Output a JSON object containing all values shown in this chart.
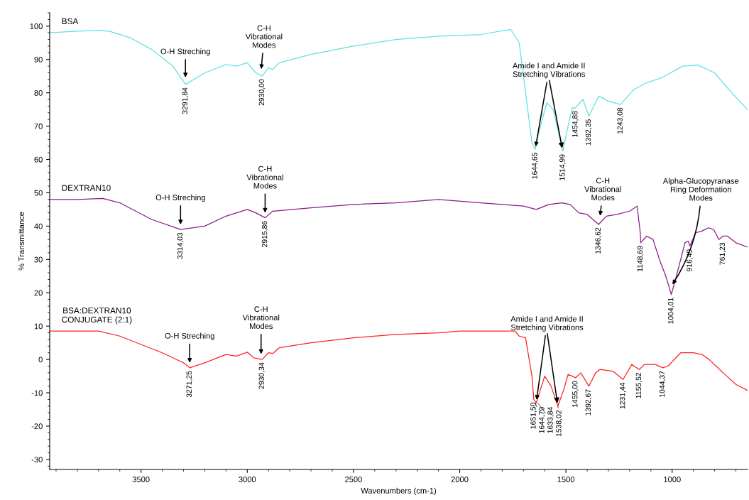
{
  "chart_data": {
    "type": "line",
    "xlabel": "Wavenumbers (cm-1)",
    "ylabel": "% Transmittance",
    "xlim": [
      3930,
      645
    ],
    "ylim": [
      -33,
      104
    ],
    "xticks": [
      3500,
      3000,
      2500,
      2000,
      1500,
      1000
    ],
    "yticks": [
      -30,
      -20,
      -10,
      0,
      10,
      20,
      30,
      40,
      50,
      60,
      70,
      80,
      90,
      100
    ],
    "grid": false,
    "legend": false,
    "marker": "none",
    "line_style": "solid",
    "series": [
      {
        "name": "BSA",
        "color": "#5fe0e0",
        "x": [
          3930,
          3800,
          3700,
          3650,
          3550,
          3450,
          3350,
          3291,
          3200,
          3100,
          3050,
          3000,
          2960,
          2930,
          2900,
          2880,
          2850,
          2700,
          2500,
          2300,
          2100,
          1900,
          1760,
          1720,
          1690,
          1660,
          1645,
          1620,
          1590,
          1560,
          1515,
          1490,
          1470,
          1455,
          1420,
          1392,
          1345,
          1300,
          1243,
          1180,
          1120,
          1050,
          950,
          880,
          800,
          720,
          645
        ],
        "values": [
          98,
          98.5,
          98.7,
          98.5,
          96.5,
          93,
          88,
          82.5,
          86,
          88.5,
          88,
          89,
          86,
          85,
          87.5,
          87,
          89,
          91.5,
          94,
          96,
          97,
          97.5,
          99,
          95,
          80,
          65,
          63,
          70,
          77,
          75,
          62.5,
          70,
          75.5,
          75.5,
          78,
          73,
          79,
          77.5,
          76.5,
          81,
          83,
          84.5,
          88,
          88.3,
          86,
          80,
          75
        ]
      },
      {
        "name": "DEXTRAN10",
        "color": "#8b1a8b",
        "x": [
          3930,
          3800,
          3680,
          3600,
          3450,
          3314,
          3200,
          3100,
          3000,
          2960,
          2916,
          2880,
          2700,
          2500,
          2300,
          2100,
          1900,
          1800,
          1700,
          1640,
          1580,
          1520,
          1480,
          1440,
          1400,
          1346,
          1310,
          1260,
          1200,
          1165,
          1150,
          1148,
          1120,
          1090,
          1060,
          1030,
          1004,
          980,
          960,
          940,
          925,
          916,
          890,
          860,
          830,
          805,
          780,
          761,
          740,
          700,
          645
        ],
        "values": [
          48,
          48,
          48.3,
          47,
          42,
          39,
          40,
          43,
          45,
          44,
          42.5,
          44.5,
          45.5,
          46.5,
          47,
          48,
          47,
          46.5,
          46,
          45,
          46.5,
          47,
          46.5,
          44,
          43.5,
          40.5,
          43,
          43.5,
          44.5,
          46,
          38,
          35,
          37,
          36,
          30,
          25,
          19.5,
          25,
          30,
          35,
          35.5,
          34,
          38,
          38.5,
          39.5,
          39,
          36,
          37,
          37,
          35,
          33.7
        ]
      },
      {
        "name": "BSA:DEXTRAN10\nCONJUGATE (2:1)",
        "color": "#ff2020",
        "x": [
          3930,
          3800,
          3700,
          3600,
          3500,
          3400,
          3300,
          3271,
          3200,
          3100,
          3050,
          3000,
          2970,
          2930,
          2900,
          2880,
          2850,
          2700,
          2500,
          2300,
          2100,
          2000,
          1800,
          1740,
          1720,
          1690,
          1660,
          1651,
          1640,
          1600,
          1570,
          1538,
          1510,
          1490,
          1470,
          1455,
          1430,
          1392,
          1360,
          1340,
          1280,
          1231,
          1190,
          1155,
          1130,
          1080,
          1044,
          1020,
          960,
          900,
          860,
          826,
          760,
          700,
          645
        ],
        "values": [
          8.5,
          8.5,
          8.5,
          7,
          4.5,
          2,
          -1,
          -2.5,
          -1,
          1.5,
          1,
          2.2,
          0.5,
          0,
          2,
          1.8,
          3.5,
          5,
          6.5,
          7.5,
          8,
          8.5,
          8.5,
          8.5,
          7,
          6.5,
          -5,
          -12,
          -13,
          -5,
          -8,
          -14,
          -9,
          -4.5,
          -5,
          -5.5,
          -4,
          -8,
          -4,
          -3,
          -3.5,
          -6,
          -1.5,
          -3,
          -1.5,
          -1.5,
          -2.5,
          -2,
          2,
          2,
          1.5,
          0,
          -4,
          -7.5,
          -9.3
        ]
      }
    ],
    "annotations": [
      {
        "text": "O-H Streching",
        "x": 3291,
        "y": 84
      },
      {
        "text": "C-H\nVibrational\nModes",
        "x": 2935,
        "y": 86.5
      },
      {
        "text": "Amide I and Amide II\nStretching Vibrations",
        "x": 1645,
        "y": 63
      },
      {
        "text": "3291,84",
        "x": 3291,
        "y": 82.5
      },
      {
        "text": "2930,00",
        "x": 2930,
        "y": 85
      },
      {
        "text": "1644,65",
        "x": 1644.65,
        "y": 63
      },
      {
        "text": "1514,99",
        "x": 1514.99,
        "y": 62.5
      },
      {
        "text": "1454,88",
        "x": 1454.88,
        "y": 75.5
      },
      {
        "text": "1392,35",
        "x": 1392.35,
        "y": 73
      },
      {
        "text": "1243,08",
        "x": 1243.08,
        "y": 76.5
      },
      {
        "text": "O-H Streching",
        "x": 3314,
        "y": 39
      },
      {
        "text": "C-H\nVibrational\nModes",
        "x": 2916,
        "y": 42.5
      },
      {
        "text": "C-H\nVibrational\nModes",
        "x": 1340,
        "y": 42.5
      },
      {
        "text": "Alpha-Glucopyranase\nRing Deformation\nModes",
        "x": 1004,
        "y": 22
      },
      {
        "text": "3314,03",
        "x": 3314.03,
        "y": 39
      },
      {
        "text": "2915,86",
        "x": 2915.86,
        "y": 42.5
      },
      {
        "text": "1346,62",
        "x": 1346.62,
        "y": 40.5
      },
      {
        "text": "1148,69",
        "x": 1148.69,
        "y": 35
      },
      {
        "text": "1004,01",
        "x": 1004.01,
        "y": 19.5
      },
      {
        "text": "916,49",
        "x": 916.49,
        "y": 34
      },
      {
        "text": "761,23",
        "x": 761.23,
        "y": 36
      },
      {
        "text": "O-H Streching",
        "x": 3271,
        "y": -2.5
      },
      {
        "text": "C-H\nVibrational\nModes",
        "x": 2935,
        "y": 1
      },
      {
        "text": "Amide I and Amide II\nStretching Vibrations",
        "x": 1640,
        "y": -13
      },
      {
        "text": "3271,25",
        "x": 3271.25,
        "y": -2.5
      },
      {
        "text": "2930,34",
        "x": 2930.34,
        "y": 0
      },
      {
        "text": "1651,50",
        "x": 1651.5,
        "y": -12
      },
      {
        "text": "1644,79",
        "x": 1644.79,
        "y": -13
      },
      {
        "text": "1633,84",
        "x": 1633.84,
        "y": -13
      },
      {
        "text": "1538,02",
        "x": 1538.02,
        "y": -14
      },
      {
        "text": "1455,00",
        "x": 1455,
        "y": -5.5
      },
      {
        "text": "1392,67",
        "x": 1392.67,
        "y": -8
      },
      {
        "text": "1231,44",
        "x": 1231.44,
        "y": -6
      },
      {
        "text": "1155,52",
        "x": 1155.52,
        "y": -3
      },
      {
        "text": "1044,37",
        "x": 1044.37,
        "y": -2.5
      }
    ]
  }
}
